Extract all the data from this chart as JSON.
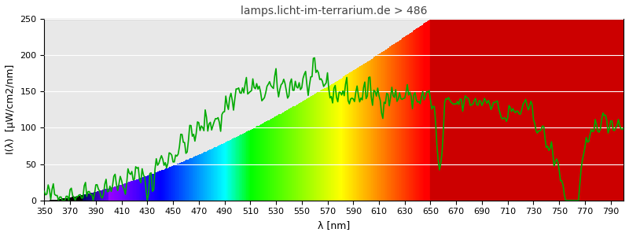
{
  "title": "lamps.licht-im-terrarium.de > 486",
  "xlabel": "λ [nm]",
  "ylabel": "I(λ)  [µW/cm2/nm]",
  "xlim": [
    350,
    800
  ],
  "ylim": [
    0,
    250
  ],
  "yticks": [
    0,
    50,
    100,
    150,
    200,
    250
  ],
  "xticks": [
    350,
    370,
    390,
    410,
    430,
    450,
    470,
    490,
    510,
    530,
    550,
    570,
    590,
    610,
    630,
    650,
    670,
    690,
    710,
    730,
    750,
    770,
    790
  ],
  "background_color": "#f0f0f0",
  "plot_bg_color": "#e8e8e8",
  "line_color": "#00aa00",
  "line_width": 1.2,
  "title_color": "#444444",
  "title_fontsize": 10,
  "axis_label_fontsize": 9,
  "tick_fontsize": 8,
  "infrared_cutoff": 650,
  "infrared_color": "#cc0000"
}
